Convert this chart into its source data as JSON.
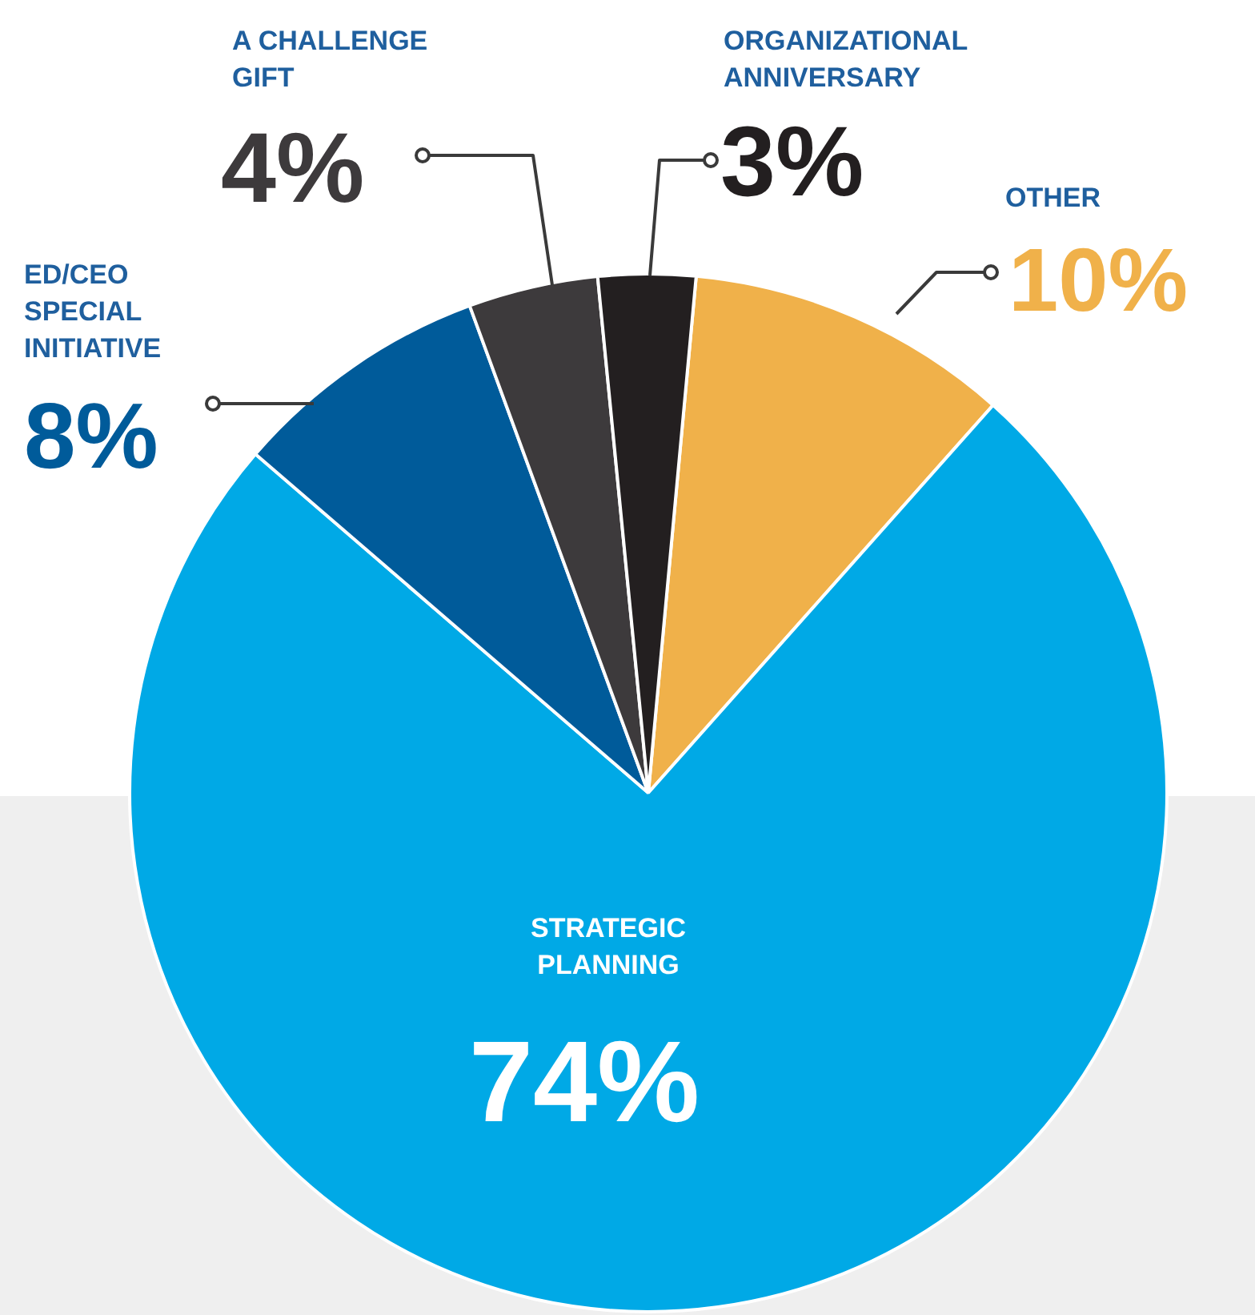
{
  "chart_data": {
    "type": "pie",
    "categories": [
      "OTHER",
      "STRATEGIC PLANNING",
      "ED/CEO SPECIAL INITIATIVE",
      "A CHALLENGE GIFT",
      "ORGANIZATIONAL ANNIVERSARY"
    ],
    "values": [
      10,
      74,
      8,
      4,
      3
    ],
    "colors": [
      "#f0b14a",
      "#00a9e6",
      "#005b9a",
      "#3d3a3c",
      "#231f20"
    ],
    "value_labels": [
      "10%",
      "74%",
      "8%",
      "4%",
      "3%"
    ]
  }
}
